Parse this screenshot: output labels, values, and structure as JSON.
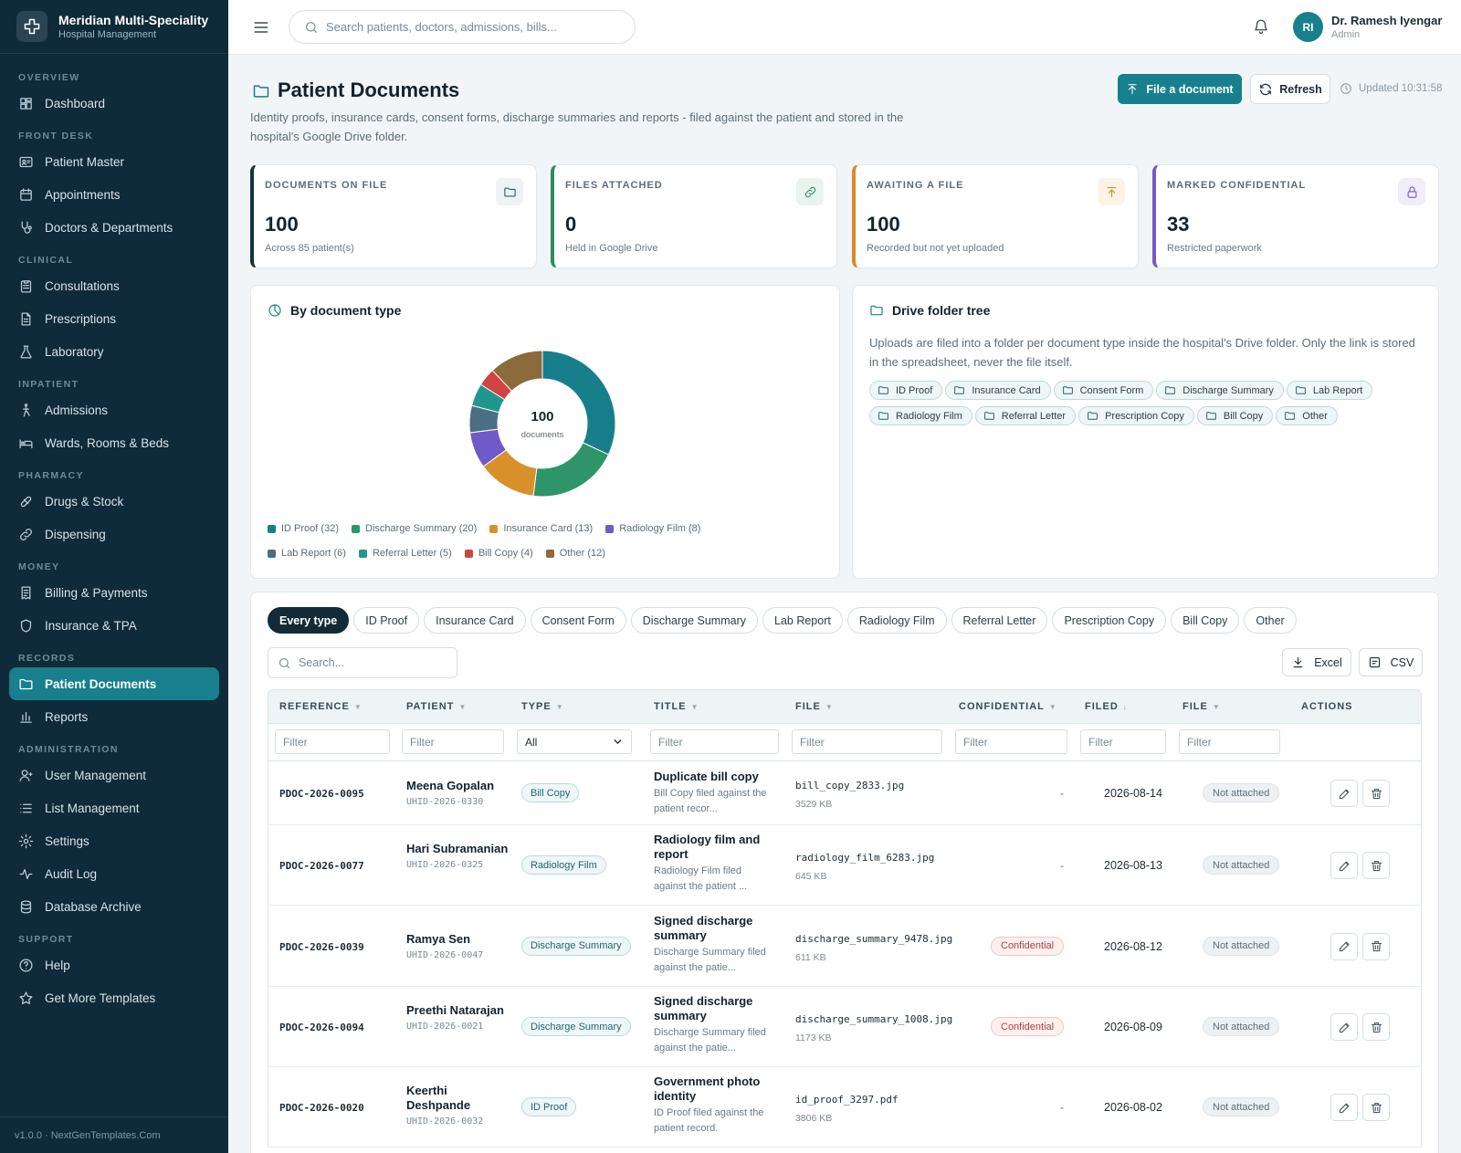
{
  "sidebar": {
    "brand_name": "Meridian Multi-Speciality Hospital",
    "brand_sub": "Hospital Management",
    "sections": [
      {
        "title": "OVERVIEW",
        "items": [
          {
            "label": "Dashboard",
            "icon": "dashboard-icon"
          }
        ]
      },
      {
        "title": "FRONT DESK",
        "items": [
          {
            "label": "Patient Master",
            "icon": "id-card-icon"
          },
          {
            "label": "Appointments",
            "icon": "calendar-icon"
          },
          {
            "label": "Doctors & Departments",
            "icon": "stethoscope-icon"
          }
        ]
      },
      {
        "title": "CLINICAL",
        "items": [
          {
            "label": "Consultations",
            "icon": "clipboard-icon"
          },
          {
            "label": "Prescriptions",
            "icon": "document-icon"
          },
          {
            "label": "Laboratory",
            "icon": "flask-icon"
          }
        ]
      },
      {
        "title": "INPATIENT",
        "items": [
          {
            "label": "Admissions",
            "icon": "accessibility-icon"
          },
          {
            "label": "Wards, Rooms & Beds",
            "icon": "bed-icon"
          }
        ]
      },
      {
        "title": "PHARMACY",
        "items": [
          {
            "label": "Drugs & Stock",
            "icon": "pill-icon"
          },
          {
            "label": "Dispensing",
            "icon": "link-icon"
          }
        ]
      },
      {
        "title": "MONEY",
        "items": [
          {
            "label": "Billing & Payments",
            "icon": "receipt-icon"
          },
          {
            "label": "Insurance & TPA",
            "icon": "shield-icon"
          }
        ]
      },
      {
        "title": "RECORDS",
        "items": [
          {
            "label": "Patient Documents",
            "icon": "folder-icon",
            "active": true
          },
          {
            "label": "Reports",
            "icon": "bar-chart-icon"
          }
        ]
      },
      {
        "title": "ADMINISTRATION",
        "items": [
          {
            "label": "User Management",
            "icon": "user-icon"
          },
          {
            "label": "List Management",
            "icon": "list-icon"
          },
          {
            "label": "Settings",
            "icon": "gear-icon"
          },
          {
            "label": "Audit Log",
            "icon": "pulse-icon"
          },
          {
            "label": "Database Archive",
            "icon": "database-icon"
          }
        ]
      },
      {
        "title": "SUPPORT",
        "items": [
          {
            "label": "Help",
            "icon": "help-icon"
          },
          {
            "label": "Get More Templates",
            "icon": "star-icon"
          }
        ]
      }
    ],
    "footer": "v1.0.0 · NextGenTemplates.Com"
  },
  "topbar": {
    "search_placeholder": "Search patients, doctors, admissions, bills...",
    "user_initials": "RI",
    "user_name": "Dr. Ramesh Iyengar",
    "user_role": "Admin"
  },
  "page": {
    "title": "Patient Documents",
    "description": "Identity proofs, insurance cards, consent forms, discharge summaries and reports - filed against the patient and stored in the hospital's Google Drive folder.",
    "primary_button": "File a document",
    "refresh_button": "Refresh",
    "updated": "Updated 10:31:58"
  },
  "stats": [
    {
      "label": "DOCUMENTS ON FILE",
      "value": "100",
      "sub": "Across 85 patient(s)",
      "icon": "folder-icon",
      "accent": "#16323f",
      "icon_bg": "#eef3f6",
      "icon_color": "#2d5f69"
    },
    {
      "label": "FILES ATTACHED",
      "value": "0",
      "sub": "Held in Google Drive",
      "icon": "link-icon",
      "accent": "#2e8b62",
      "icon_bg": "#e8f5ee",
      "icon_color": "#2e8b62"
    },
    {
      "label": "AWAITING A FILE",
      "value": "100",
      "sub": "Recorded but not yet uploaded",
      "icon": "upload-icon",
      "accent": "#d88a2a",
      "icon_bg": "#fdf3e4",
      "icon_color": "#d88a2a"
    },
    {
      "label": "MARKED CONFIDENTIAL",
      "value": "33",
      "sub": "Restricted paperwork",
      "icon": "lock-icon",
      "accent": "#7559c6",
      "icon_bg": "#f1edfa",
      "icon_color": "#7559c6"
    }
  ],
  "chart_panel": {
    "title": "By document type"
  },
  "chart_data": {
    "type": "pie",
    "center_value": "100",
    "center_label": "documents",
    "slices": [
      {
        "label": "ID Proof",
        "value": 32,
        "color": "#177f8b"
      },
      {
        "label": "Discharge Summary",
        "value": 20,
        "color": "#2e9568"
      },
      {
        "label": "Insurance Card",
        "value": 13,
        "color": "#d8902a"
      },
      {
        "label": "Radiology Film",
        "value": 8,
        "color": "#7059c8"
      },
      {
        "label": "Lab Report",
        "value": 6,
        "color": "#4a6f84"
      },
      {
        "label": "Referral Letter",
        "value": 5,
        "color": "#20968f"
      },
      {
        "label": "Bill Copy",
        "value": 4,
        "color": "#d24444"
      },
      {
        "label": "Other",
        "value": 12,
        "color": "#8b6a3c"
      }
    ],
    "legend": "bottom"
  },
  "tree_panel": {
    "title": "Drive folder tree",
    "description": "Uploads are filed into a folder per document type inside the hospital's Drive folder. Only the link is stored in the spreadsheet, never the file itself.",
    "folders": [
      "ID Proof",
      "Insurance Card",
      "Consent Form",
      "Discharge Summary",
      "Lab Report",
      "Radiology Film",
      "Referral Letter",
      "Prescription Copy",
      "Bill Copy",
      "Other"
    ]
  },
  "table": {
    "tabs": [
      "Every type",
      "ID Proof",
      "Insurance Card",
      "Consent Form",
      "Discharge Summary",
      "Lab Report",
      "Radiology Film",
      "Referral Letter",
      "Prescription Copy",
      "Bill Copy",
      "Other"
    ],
    "search_placeholder": "Search...",
    "excel_label": "Excel",
    "csv_label": "CSV",
    "columns": [
      {
        "label": "REFERENCE",
        "sort": "▼"
      },
      {
        "label": "PATIENT",
        "sort": "▼"
      },
      {
        "label": "TYPE",
        "sort": "▼"
      },
      {
        "label": "TITLE",
        "sort": "▼"
      },
      {
        "label": "FILE",
        "sort": "▼"
      },
      {
        "label": "CONFIDENTIAL",
        "sort": "▼"
      },
      {
        "label": "FILED",
        "sort": "↓"
      },
      {
        "label": "FILE",
        "sort": "▼"
      },
      {
        "label": "ACTIONS",
        "sort": ""
      }
    ],
    "filter_placeholder": "Filter",
    "type_filter_value": "All",
    "rows": [
      {
        "ref": "PDOC-2026-0095",
        "patient": "Meena Gopalan",
        "uhid": "UHID-2026-0330",
        "type": "Bill Copy",
        "title": "Duplicate bill copy",
        "desc": "Bill Copy filed against the patient recor...",
        "file": "bill_copy_2833.jpg",
        "size": "3529 KB",
        "confidential": "-",
        "filed": "2026-08-14",
        "status": "Not attached"
      },
      {
        "ref": "PDOC-2026-0077",
        "patient": "Hari Subramanian",
        "uhid": "UHID-2026-0325",
        "type": "Radiology Film",
        "title": "Radiology film and report",
        "desc": "Radiology Film filed against the patient ...",
        "file": "radiology_film_6283.jpg",
        "size": "645 KB",
        "confidential": "-",
        "filed": "2026-08-13",
        "status": "Not attached"
      },
      {
        "ref": "PDOC-2026-0039",
        "patient": "Ramya Sen",
        "uhid": "UHID-2026-0047",
        "type": "Discharge Summary",
        "title": "Signed discharge summary",
        "desc": "Discharge Summary filed against the patie...",
        "file": "discharge_summary_9478.jpg",
        "size": "611 KB",
        "confidential": "Confidential",
        "filed": "2026-08-12",
        "status": "Not attached"
      },
      {
        "ref": "PDOC-2026-0094",
        "patient": "Preethi Natarajan",
        "uhid": "UHID-2026-0021",
        "type": "Discharge Summary",
        "title": "Signed discharge summary",
        "desc": "Discharge Summary filed against the patie...",
        "file": "discharge_summary_1008.jpg",
        "size": "1173 KB",
        "confidential": "Confidential",
        "filed": "2026-08-09",
        "status": "Not attached"
      },
      {
        "ref": "PDOC-2026-0020",
        "patient": "Keerthi Deshpande",
        "uhid": "UHID-2026-0032",
        "type": "ID Proof",
        "title": "Government photo identity",
        "desc": "ID Proof filed against the patient record.",
        "file": "id_proof_3297.pdf",
        "size": "3806 KB",
        "confidential": "-",
        "filed": "2026-08-02",
        "status": "Not attached"
      }
    ]
  }
}
